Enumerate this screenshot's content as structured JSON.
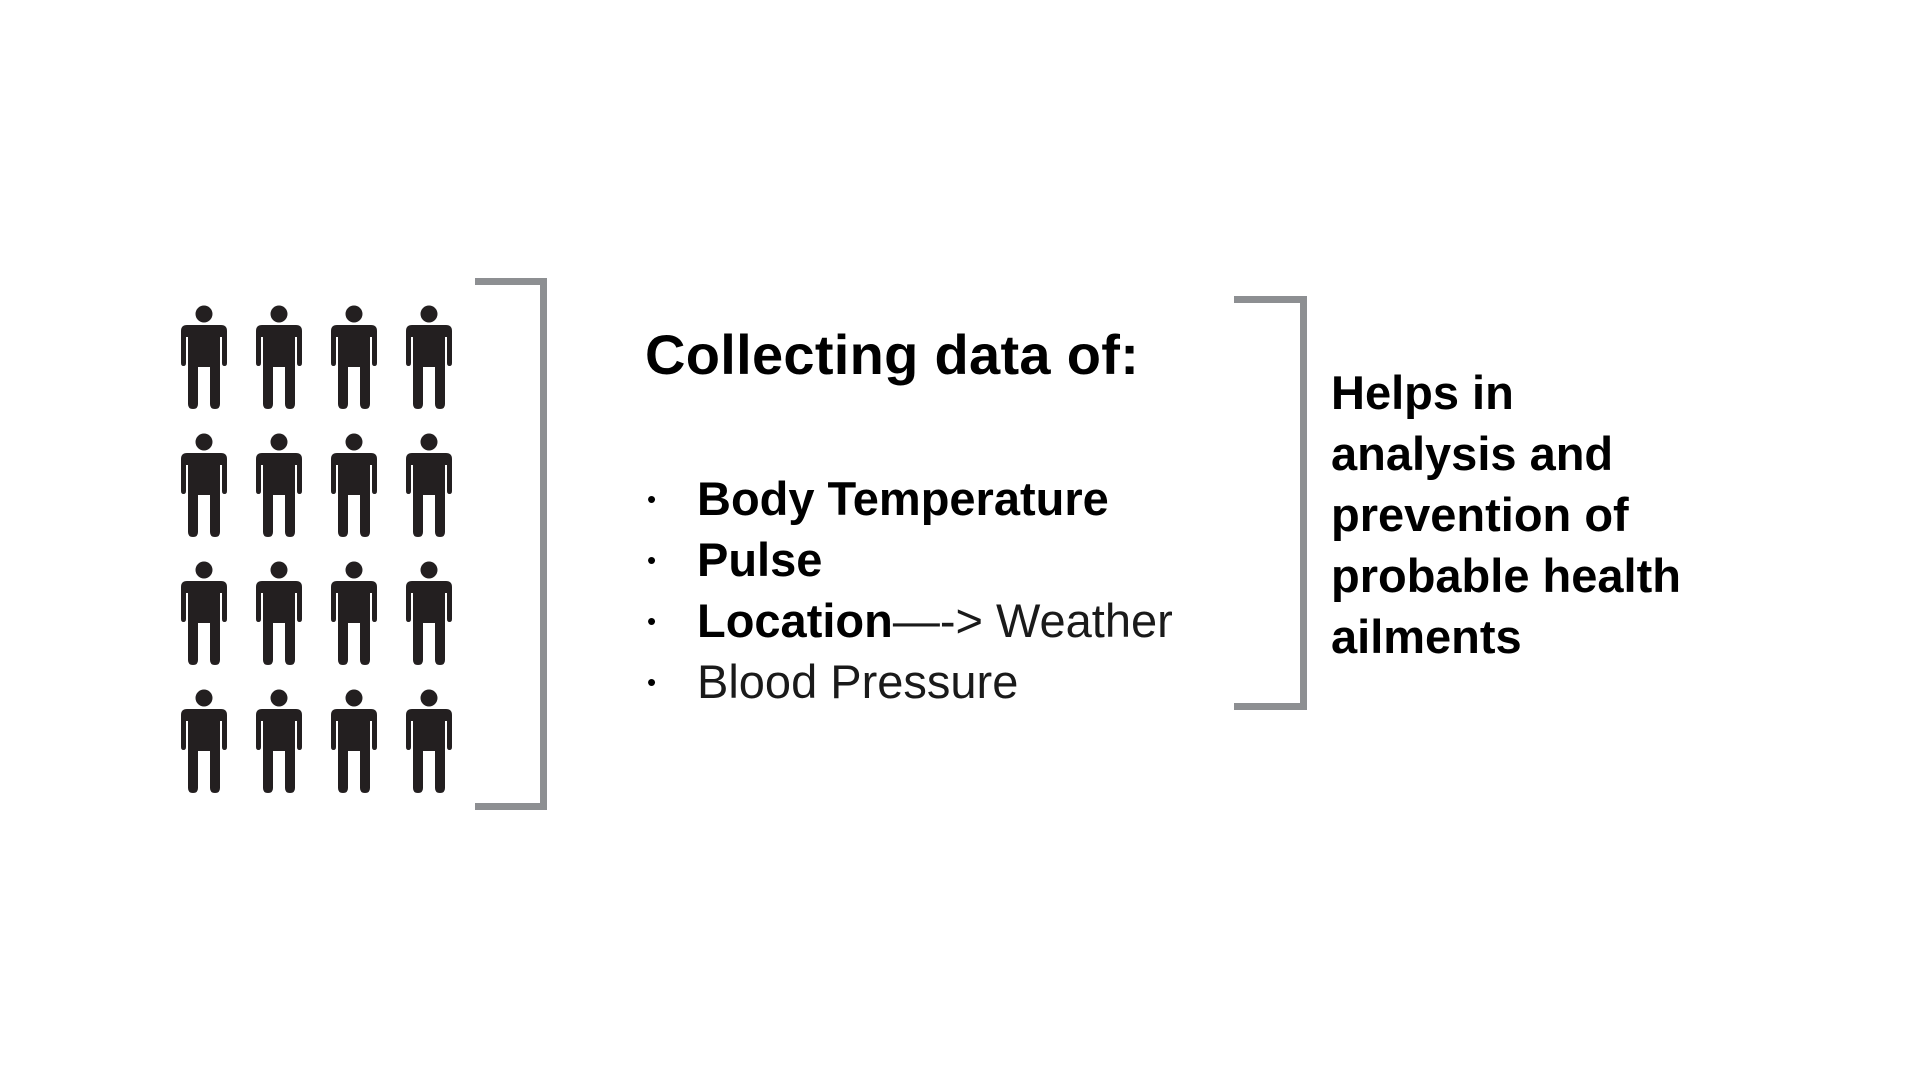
{
  "people": {
    "icon": "person-icon",
    "count": 16,
    "color": "#231f20"
  },
  "bracket_color": "#8d8f92",
  "heading": "Collecting data of:",
  "items": [
    {
      "bold_text": "Body Temperature",
      "light_text": ""
    },
    {
      "bold_text": "Pulse",
      "light_text": ""
    },
    {
      "bold_text": "Location",
      "light_text": "—-> Weather"
    },
    {
      "bold_text": "",
      "light_text": "Blood Pressure"
    }
  ],
  "bullet_symbol": "•",
  "outcome": {
    "lines": [
      "Helps in",
      "analysis and",
      "prevention of",
      "probable health",
      "ailments"
    ]
  }
}
